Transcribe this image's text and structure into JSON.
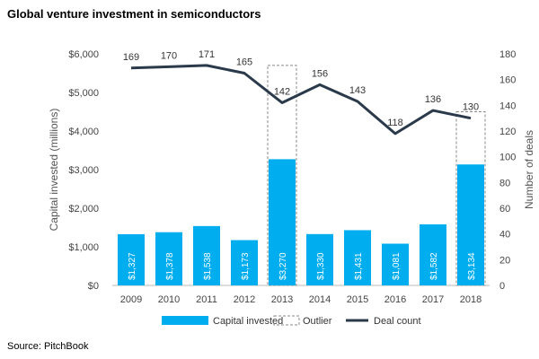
{
  "chart_data": {
    "type": "bar",
    "title": "Global venture investment in semiconductors",
    "categories": [
      "2009",
      "2010",
      "2011",
      "2012",
      "2013",
      "2014",
      "2015",
      "2016",
      "2017",
      "2018"
    ],
    "series": [
      {
        "name": "Capital invested",
        "axis": "left",
        "values": [
          1327,
          1378,
          1538,
          1173,
          3270,
          1330,
          1431,
          1081,
          1582,
          3134
        ],
        "labels": [
          "$1,327",
          "$1,378",
          "$1,538",
          "$1,173",
          "$3,270",
          "$1,330",
          "$1,431",
          "$1,081",
          "$1,582",
          "$3,134"
        ]
      },
      {
        "name": "Outlier",
        "axis": "left",
        "values": [
          null,
          null,
          null,
          null,
          5700,
          null,
          null,
          null,
          null,
          4500
        ]
      },
      {
        "name": "Deal count",
        "axis": "right",
        "type": "line",
        "values": [
          169,
          170,
          171,
          165,
          142,
          156,
          143,
          118,
          136,
          130
        ]
      }
    ],
    "ylabel": "Capital invested (millions)",
    "y2label": "Number of deals",
    "ylim": [
      0,
      6000
    ],
    "y2lim": [
      0,
      180
    ],
    "yticks": [
      "$0",
      "$1,000",
      "$2,000",
      "$3,000",
      "$4,000",
      "$5,000",
      "$6,000"
    ],
    "y2ticks": [
      "0",
      "20",
      "40",
      "60",
      "80",
      "100",
      "120",
      "140",
      "160",
      "180"
    ],
    "legend": [
      "Capital invested",
      "Outlier",
      "Deal count"
    ],
    "legend_position": "bottom",
    "grid": false
  },
  "colors": {
    "bar": "#00adef",
    "line": "#2b3a4a",
    "outlier": "#888888"
  },
  "source": "Source: PitchBook"
}
